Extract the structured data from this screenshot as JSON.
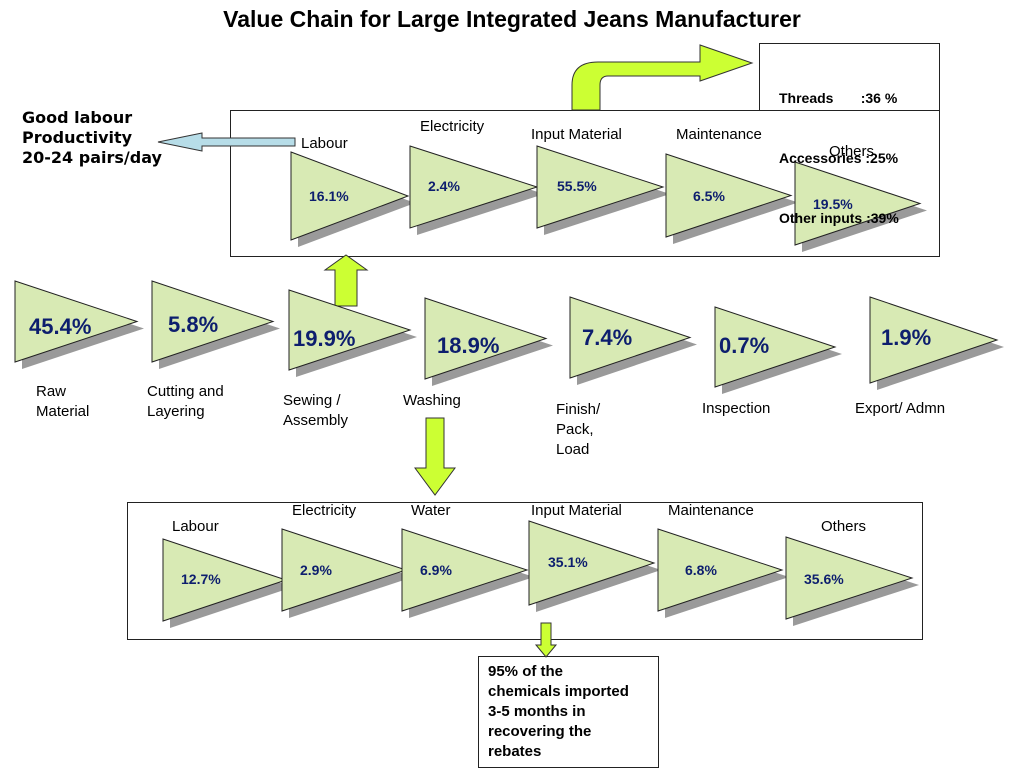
{
  "title": "Value Chain for Large Integrated Jeans Manufacturer",
  "productivity_note": [
    "Good labour",
    "Productivity",
    "20-24 pairs/day"
  ],
  "threads_box": [
    "Threads       :36 %",
    "Accessories :25%",
    "Other inputs :39%"
  ],
  "chemicals_note": [
    "95% of the",
    "chemicals imported",
    "3-5 months in",
    "recovering the",
    "rebates"
  ],
  "main_chain": [
    {
      "value": "45.4%",
      "label": [
        "Raw",
        "Material"
      ]
    },
    {
      "value": "5.8%",
      "label": [
        "Cutting and",
        "Layering"
      ]
    },
    {
      "value": "19.9%",
      "label": [
        "Sewing /",
        "Assembly"
      ]
    },
    {
      "value": "18.9%",
      "label": [
        "Washing"
      ]
    },
    {
      "value": "7.4%",
      "label": [
        "Finish/",
        "Pack,",
        "Load"
      ]
    },
    {
      "value": "0.7%",
      "label": [
        "Inspection"
      ]
    },
    {
      "value": "1.9%",
      "label": [
        "Export/ Admn"
      ]
    }
  ],
  "sewing_breakdown": [
    {
      "label": "Labour",
      "value": "16.1%"
    },
    {
      "label": "Electricity",
      "value": "2.4%"
    },
    {
      "label": "Input Material",
      "value": "55.5%"
    },
    {
      "label": "Maintenance",
      "value": "6.5%"
    },
    {
      "label": "Others",
      "value": "19.5%"
    }
  ],
  "washing_breakdown": [
    {
      "label": "Labour",
      "value": "12.7%"
    },
    {
      "label": "Electricity",
      "value": "2.9%"
    },
    {
      "label": "Water",
      "value": "6.9%"
    },
    {
      "label": "Input Material",
      "value": "35.1%"
    },
    {
      "label": "Maintenance",
      "value": "6.8%"
    },
    {
      "label": "Others",
      "value": "35.6%"
    }
  ],
  "colors": {
    "triangle_fill": "#d8eab4",
    "triangle_stroke": "#222222",
    "shadow": "#9a9a9a",
    "value_text": "#0d1e6e",
    "green_arrow": "#ccff33",
    "blue_arrow": "#b7dde8"
  }
}
